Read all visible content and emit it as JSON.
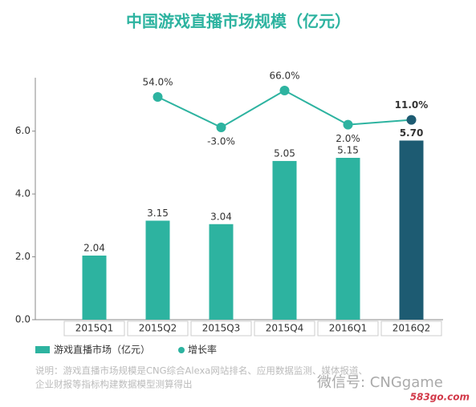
{
  "chart_data": {
    "type": "bar_line",
    "title": "中国游戏直播市场规模（亿元）",
    "categories": [
      "2015Q1",
      "2015Q2",
      "2015Q3",
      "2015Q4",
      "2016Q1",
      "2016Q2"
    ],
    "series": [
      {
        "name": "游戏直播市场（亿元）",
        "type": "bar",
        "color": "#2db3a0",
        "values": [
          2.04,
          3.15,
          3.04,
          5.05,
          5.15,
          5.7
        ],
        "value_labels": [
          "2.04",
          "3.15",
          "3.04",
          "5.05",
          "5.15",
          "5.70"
        ]
      },
      {
        "name": "增长率",
        "type": "line",
        "axis": "y2",
        "color": "#2db3a0",
        "values": [
          null,
          54.0,
          -3.0,
          66.0,
          2.0,
          11.0
        ],
        "value_labels": [
          null,
          "54.0%",
          "-3.0%",
          "66.0%",
          "2.0%",
          "11.0%"
        ]
      }
    ],
    "highlight_last": true,
    "highlight_color": "#1d5b72",
    "ylim": [
      0,
      7.7
    ],
    "yticks": [
      {
        "value": 0,
        "label": "0.0"
      },
      {
        "value": 2,
        "label": "2.0"
      },
      {
        "value": 4,
        "label": "4.0"
      },
      {
        "value": 6,
        "label": "6.0"
      }
    ],
    "y2lim": [
      -363,
      90
    ],
    "note": [
      "说明：游戏直播市场规模是CNG综合Alexa网站排名、应用数据监测、媒体报道、",
      "企业财报等指标构建数据模型测算得出"
    ],
    "watermark": "微信号: CNGgame",
    "site": "583go.com"
  }
}
